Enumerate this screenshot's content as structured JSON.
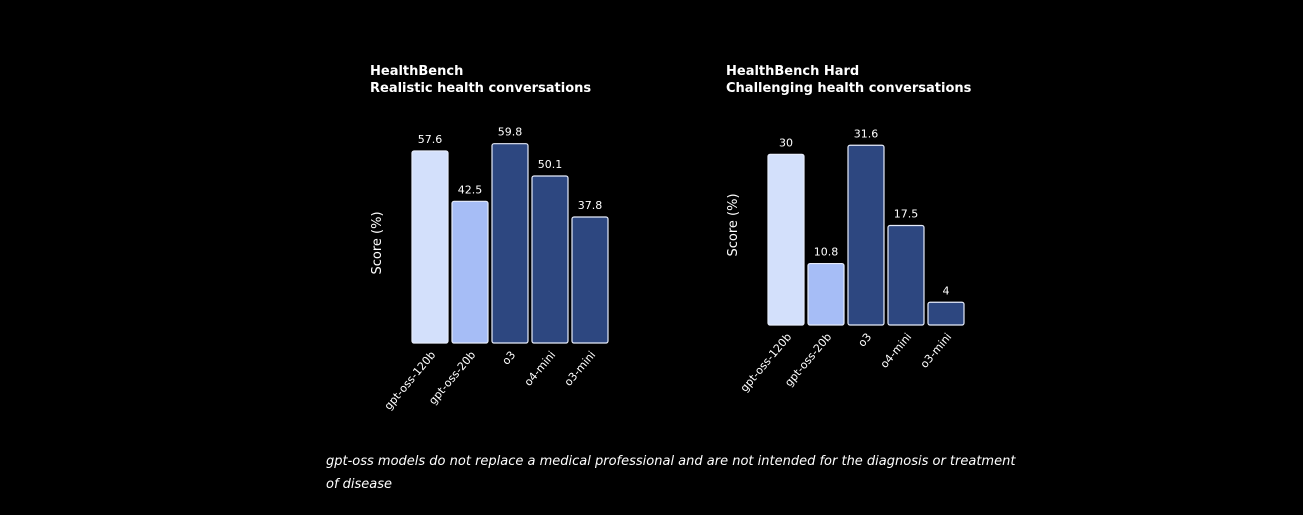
{
  "chart_data": [
    {
      "type": "bar",
      "title": "HealthBench",
      "subtitle": "Realistic health conversations",
      "ylabel": "Score (%)",
      "categories": [
        "gpt-oss-120b",
        "gpt-oss-20b",
        "o3",
        "o4-mini",
        "o3-mini"
      ],
      "values": [
        57.6,
        42.5,
        59.8,
        50.1,
        37.8
      ],
      "value_labels": [
        "57.6",
        "42.5",
        "59.8",
        "50.1",
        "37.8"
      ],
      "ylim": [
        0,
        60
      ],
      "grid": false,
      "bar_colors": [
        "#d3e0fb",
        "#a6bdf6",
        "#2d4780",
        "#2d4780",
        "#2d4780"
      ]
    },
    {
      "type": "bar",
      "title": "HealthBench Hard",
      "subtitle": "Challenging health conversations",
      "ylabel": "Score (%)",
      "categories": [
        "gpt-oss-120b",
        "gpt-oss-20b",
        "o3",
        "o4-mini",
        "o3-mini"
      ],
      "values": [
        30,
        10.8,
        31.6,
        17.5,
        4
      ],
      "value_labels": [
        "30",
        "10.8",
        "31.6",
        "17.5",
        "4"
      ],
      "ylim": [
        0,
        32
      ],
      "grid": false,
      "bar_colors": [
        "#d3e0fb",
        "#a6bdf6",
        "#2d4780",
        "#2d4780",
        "#2d4780"
      ]
    }
  ],
  "footnote": "gpt-oss models do not replace a medical professional and are not intended for the diagnosis or treatment of disease",
  "colors": {
    "background": "#000000",
    "text": "#ffffff",
    "bar_stroke": "#e6ecfb"
  }
}
